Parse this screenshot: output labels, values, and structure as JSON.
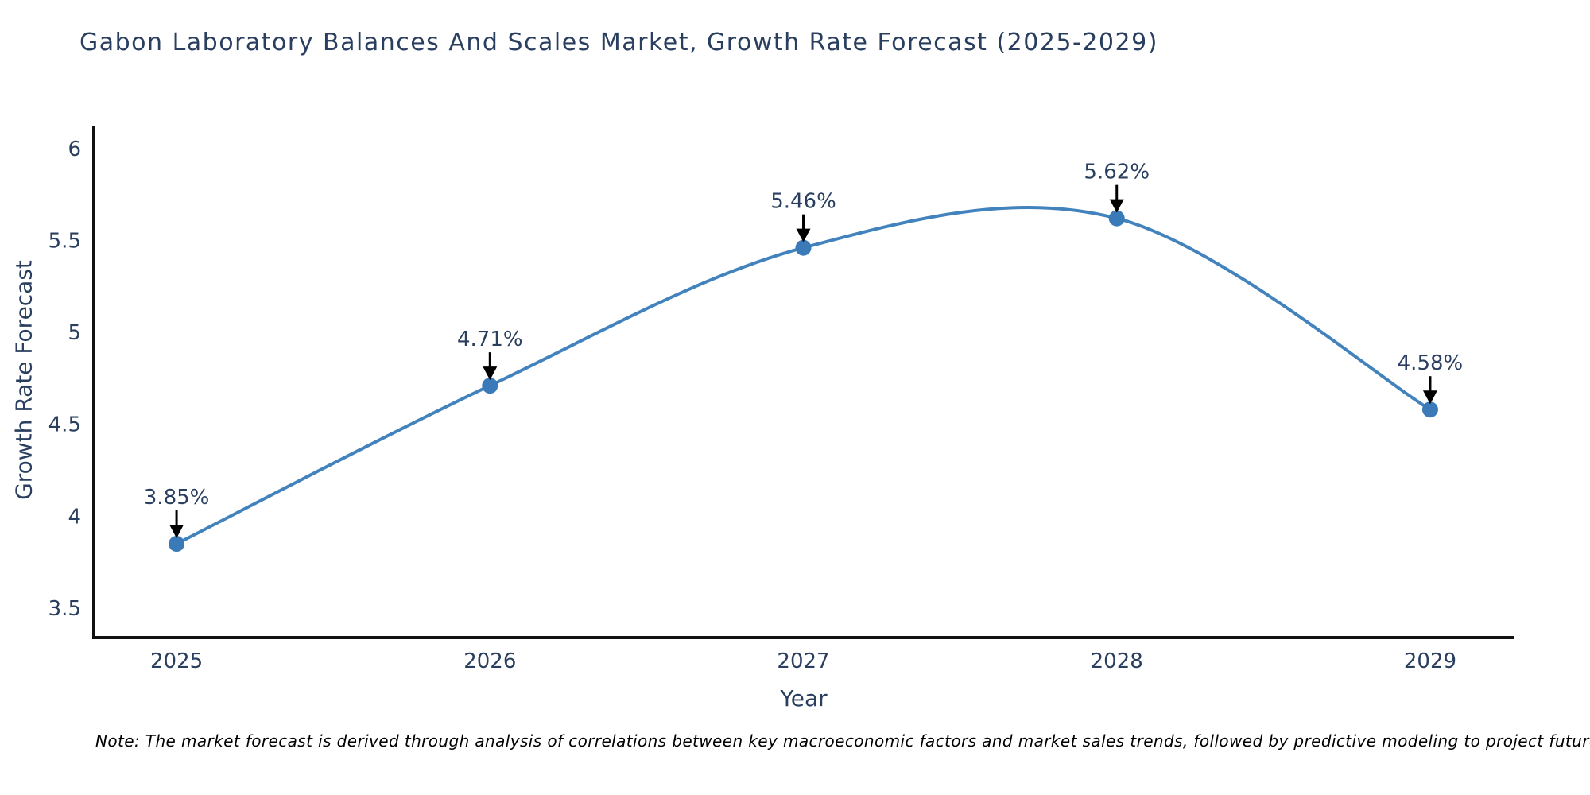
{
  "chart_data": {
    "type": "line",
    "title": "Gabon Laboratory Balances And Scales Market, Growth Rate Forecast (2025-2029)",
    "xlabel": "Year",
    "ylabel": "Growth Rate Forecast",
    "x": [
      2025,
      2026,
      2027,
      2028,
      2029
    ],
    "categories": [
      "2025",
      "2026",
      "2027",
      "2028",
      "2029"
    ],
    "series": [
      {
        "name": "Growth Rate Forecast",
        "values": [
          3.85,
          4.71,
          5.46,
          5.62,
          4.58
        ]
      }
    ],
    "point_labels": [
      "3.85%",
      "4.71%",
      "5.46%",
      "5.62%",
      "4.58%"
    ],
    "ytick_values": [
      3.5,
      4,
      4.5,
      5,
      5.5,
      6
    ],
    "ytick_labels": [
      "3.5",
      "4",
      "4.5",
      "5",
      "5.5",
      "6"
    ],
    "ylim": [
      3.34,
      6.12
    ],
    "xlim": [
      2024.736,
      2029.269
    ],
    "line_shape": "spline",
    "grid": false,
    "legend_position": "none",
    "colors": {
      "line": "#4383bd",
      "marker": "#3a7ab8",
      "axis": "#111111",
      "text": "#2a3f5f",
      "arrow": "#000000",
      "background": "#ffffff"
    }
  },
  "note": {
    "text": "Note: The market forecast is derived through analysis of correlations between key macroeconomic factors and market sales trends, followed by predictive modeling to project future sales"
  }
}
